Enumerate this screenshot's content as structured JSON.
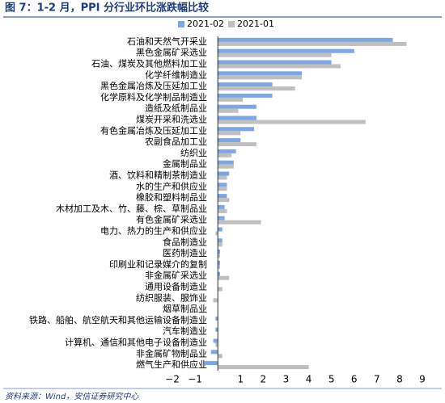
{
  "chart_data": {
    "type": "hbar",
    "title": "图 7：1-2 月，PPI 分行业环比涨跌幅比较",
    "source": "资料来源：Wind，安信证券研究中心",
    "categories": [
      "石油和天然气开采业",
      "黑色金属矿采选业",
      "石油、煤炭及其他燃料加工业",
      "化学纤维制造业",
      "黑色金属冶炼及压延加工业",
      "化学原料及化学制品制造业",
      "造纸及纸制品业",
      "煤炭开采和洗选业",
      "有色金属冶炼及压延加工业",
      "农副食品加工业",
      "纺织业",
      "金属制品业",
      "酒、饮料和精制茶制造业",
      "水的生产和供应业",
      "橡胶和塑料制品业",
      "木材加工及木、竹、藤、棕、草制品业",
      "有色金属矿采选业",
      "电力、热力的生产和供应业",
      "食品制造业",
      "医药制造业",
      "印刷业和记录媒介的复制",
      "非金属矿采选业",
      "通用设备制造业",
      "纺织服装、服饰业",
      "烟草制品业",
      "铁路、船舶、航空航天和其他运输设备制造业",
      "汽车制造业",
      "计算机、通信和其他电子设备制造业",
      "非金属矿物制品业",
      "燃气生产和供应业"
    ],
    "series": [
      {
        "name": "2021-02",
        "color": "#7ea6e0",
        "values": [
          7.7,
          6.0,
          5.0,
          3.7,
          2.4,
          2.4,
          1.7,
          1.7,
          1.6,
          1.0,
          0.8,
          0.7,
          0.5,
          0.4,
          0.4,
          0.3,
          0.3,
          0.2,
          0.2,
          0.1,
          0.1,
          0.1,
          0.0,
          0.0,
          0.0,
          -0.1,
          -0.1,
          -0.2,
          -0.3,
          -0.6
        ]
      },
      {
        "name": "2021-01",
        "color": "#bfbfbf",
        "values": [
          8.3,
          5.0,
          5.4,
          3.7,
          3.4,
          1.1,
          0.9,
          6.5,
          1.0,
          1.7,
          0.6,
          0.7,
          0.4,
          0.4,
          0.5,
          0.4,
          1.9,
          -0.1,
          0.2,
          0.1,
          0.1,
          0.5,
          0.2,
          -0.2,
          0.0,
          0.0,
          0.0,
          -0.1,
          0.2,
          4.0
        ]
      }
    ],
    "xlim": [
      -2,
      9
    ],
    "xticks": [
      {
        "value": -2,
        "label": "−2"
      },
      {
        "value": -1,
        "label": "−1"
      },
      1,
      2,
      3,
      4,
      5,
      6,
      7,
      8,
      9
    ],
    "legend": "top"
  }
}
